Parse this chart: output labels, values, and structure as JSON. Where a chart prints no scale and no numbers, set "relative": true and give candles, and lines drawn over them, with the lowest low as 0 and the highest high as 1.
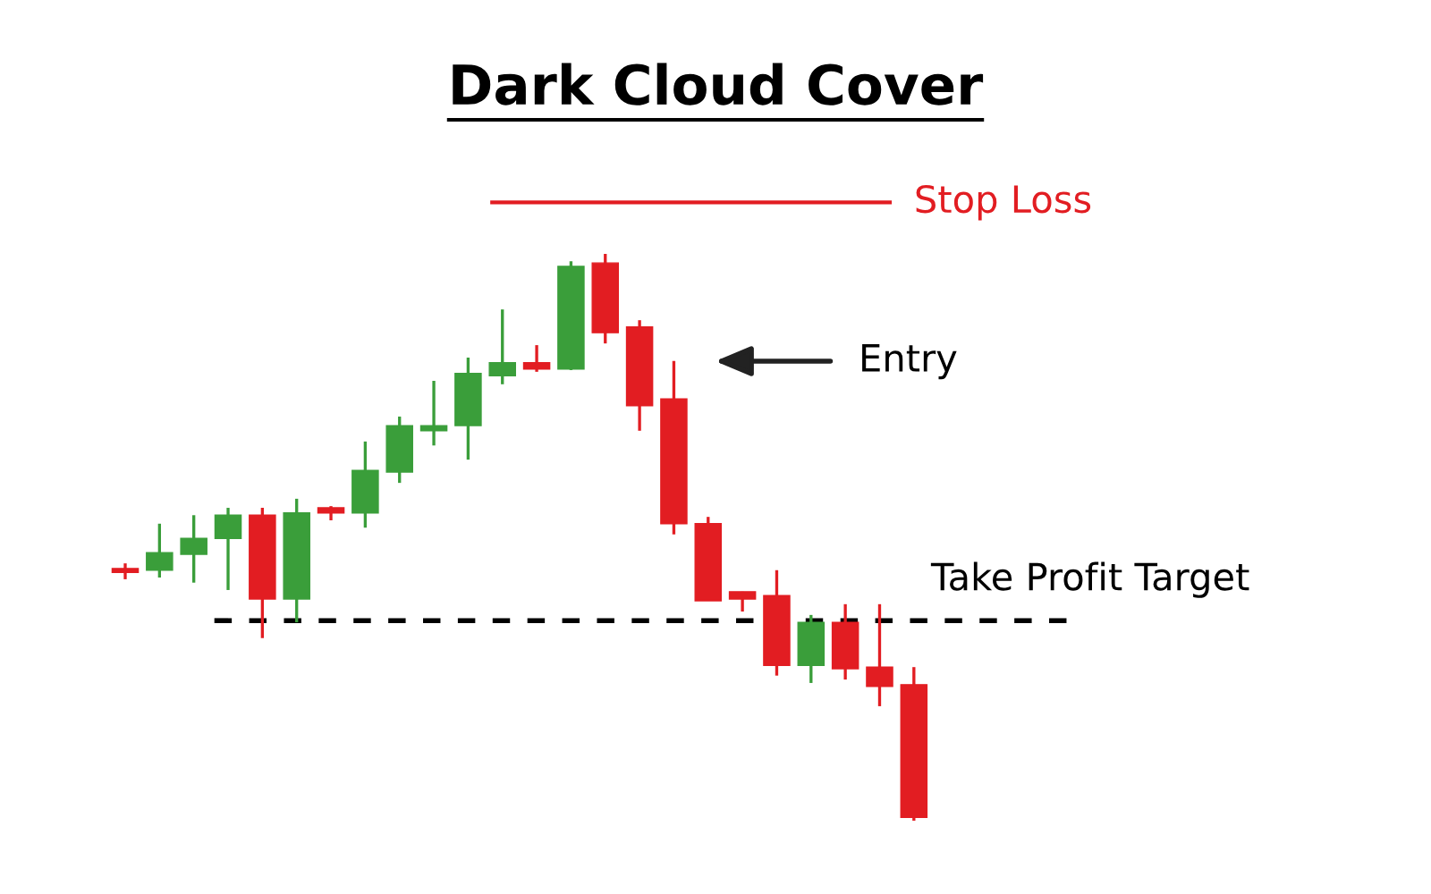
{
  "chart_data": {
    "type": "candlestick",
    "title": "Dark Cloud Cover",
    "relative": true,
    "categories": [
      null,
      null,
      null,
      null,
      null,
      null,
      null,
      null,
      null,
      null,
      null,
      null,
      null,
      null,
      null,
      null,
      null,
      null,
      null,
      null,
      null,
      null,
      null,
      null
    ],
    "ohlc": [
      [
        0.445,
        0.454,
        0.426,
        0.438
      ],
      [
        0.442,
        0.524,
        0.429,
        0.473
      ],
      [
        0.47,
        0.539,
        0.42,
        0.498
      ],
      [
        0.498,
        0.552,
        0.407,
        0.539
      ],
      [
        0.539,
        0.552,
        0.322,
        0.391
      ],
      [
        0.391,
        0.568,
        0.35,
        0.543
      ],
      [
        0.552,
        0.555,
        0.53,
        0.543
      ],
      [
        0.543,
        0.669,
        0.517,
        0.618
      ],
      [
        0.615,
        0.713,
        0.596,
        0.697
      ],
      [
        0.688,
        0.776,
        0.662,
        0.697
      ],
      [
        0.697,
        0.817,
        0.637,
        0.789
      ],
      [
        0.785,
        0.902,
        0.77,
        0.808
      ],
      [
        0.808,
        0.839,
        0.792,
        0.797
      ],
      [
        0.797,
        0.987,
        0.795,
        0.978
      ],
      [
        0.984,
        1.0,
        0.842,
        0.861
      ],
      [
        0.871,
        0.883,
        0.688,
        0.732
      ],
      [
        0.744,
        0.811,
        0.505,
        0.524
      ],
      [
        0.524,
        0.536,
        0.388,
        0.388
      ],
      [
        0.404,
        0.404,
        0.369,
        0.391
      ],
      [
        0.397,
        0.442,
        0.256,
        0.274
      ],
      [
        0.274,
        0.363,
        0.243,
        0.35
      ],
      [
        0.35,
        0.382,
        0.249,
        0.268
      ],
      [
        0.271,
        0.382,
        0.202,
        0.237
      ],
      [
        0.24,
        0.271,
        0.0,
        0.006
      ]
    ],
    "colors": [
      "#e21d22",
      "#3a9e3a",
      "#3a9e3a",
      "#3a9e3a",
      "#e21d22",
      "#3a9e3a",
      "#e21d22",
      "#3a9e3a",
      "#3a9e3a",
      "#3a9e3a",
      "#3a9e3a",
      "#3a9e3a",
      "#e21d22",
      "#3a9e3a",
      "#e21d22",
      "#e21d22",
      "#e21d22",
      "#e21d22",
      "#e21d22",
      "#e21d22",
      "#3a9e3a",
      "#e21d22",
      "#e21d22",
      "#e21d22"
    ],
    "ref_lines": [
      {
        "axis": "y",
        "value": 1.091,
        "label": "Stop Loss",
        "color": "#e21d22",
        "line_style": "solid"
      },
      {
        "axis": "y",
        "value": 0.353,
        "label": "Take Profit Target",
        "color": "#000000",
        "line_style": "dashed"
      }
    ],
    "annotations": [
      "Entry"
    ]
  }
}
